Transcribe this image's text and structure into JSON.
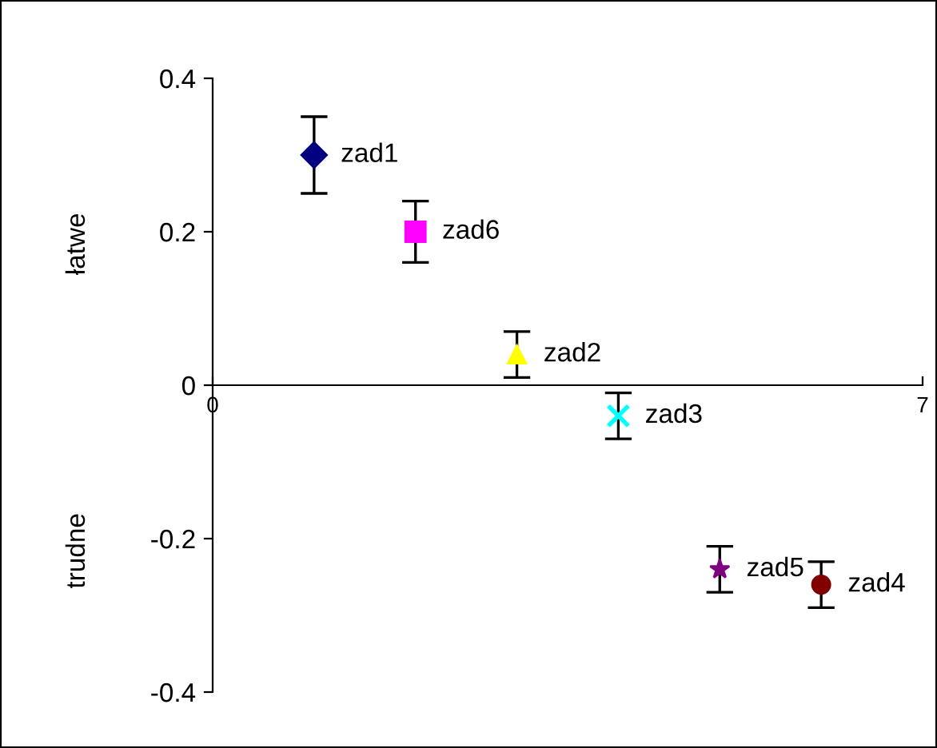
{
  "chart_data": {
    "type": "scatter",
    "annotations": [
      "łatwe",
      "trudne"
    ],
    "xlim": [
      0,
      7
    ],
    "xticks": [
      0,
      7
    ],
    "ylim": [
      -0.4,
      0.4
    ],
    "yticks": [
      -0.4,
      -0.2,
      0,
      0.2,
      0.4
    ],
    "grid": false,
    "legend": false,
    "series": [
      {
        "name": "zad1",
        "color": "#000080",
        "marker": "diamond",
        "x": [
          1
        ],
        "values": [
          0.3
        ],
        "errors": [
          0.05
        ]
      },
      {
        "name": "zad6",
        "color": "#ff00ff",
        "marker": "square",
        "x": [
          2
        ],
        "values": [
          0.2
        ],
        "errors": [
          0.04
        ]
      },
      {
        "name": "zad2",
        "color": "#ffff00",
        "marker": "triangle",
        "x": [
          3
        ],
        "values": [
          0.04
        ],
        "errors": [
          0.03
        ]
      },
      {
        "name": "zad3",
        "color": "#00ffff",
        "marker": "cross",
        "x": [
          4
        ],
        "values": [
          -0.04
        ],
        "errors": [
          0.03
        ]
      },
      {
        "name": "zad5",
        "color": "#800080",
        "marker": "star",
        "x": [
          5
        ],
        "values": [
          -0.24
        ],
        "errors": [
          0.03
        ]
      },
      {
        "name": "zad4",
        "color": "#800000",
        "marker": "circle",
        "x": [
          6
        ],
        "values": [
          -0.26
        ],
        "errors": [
          0.03
        ]
      }
    ]
  }
}
